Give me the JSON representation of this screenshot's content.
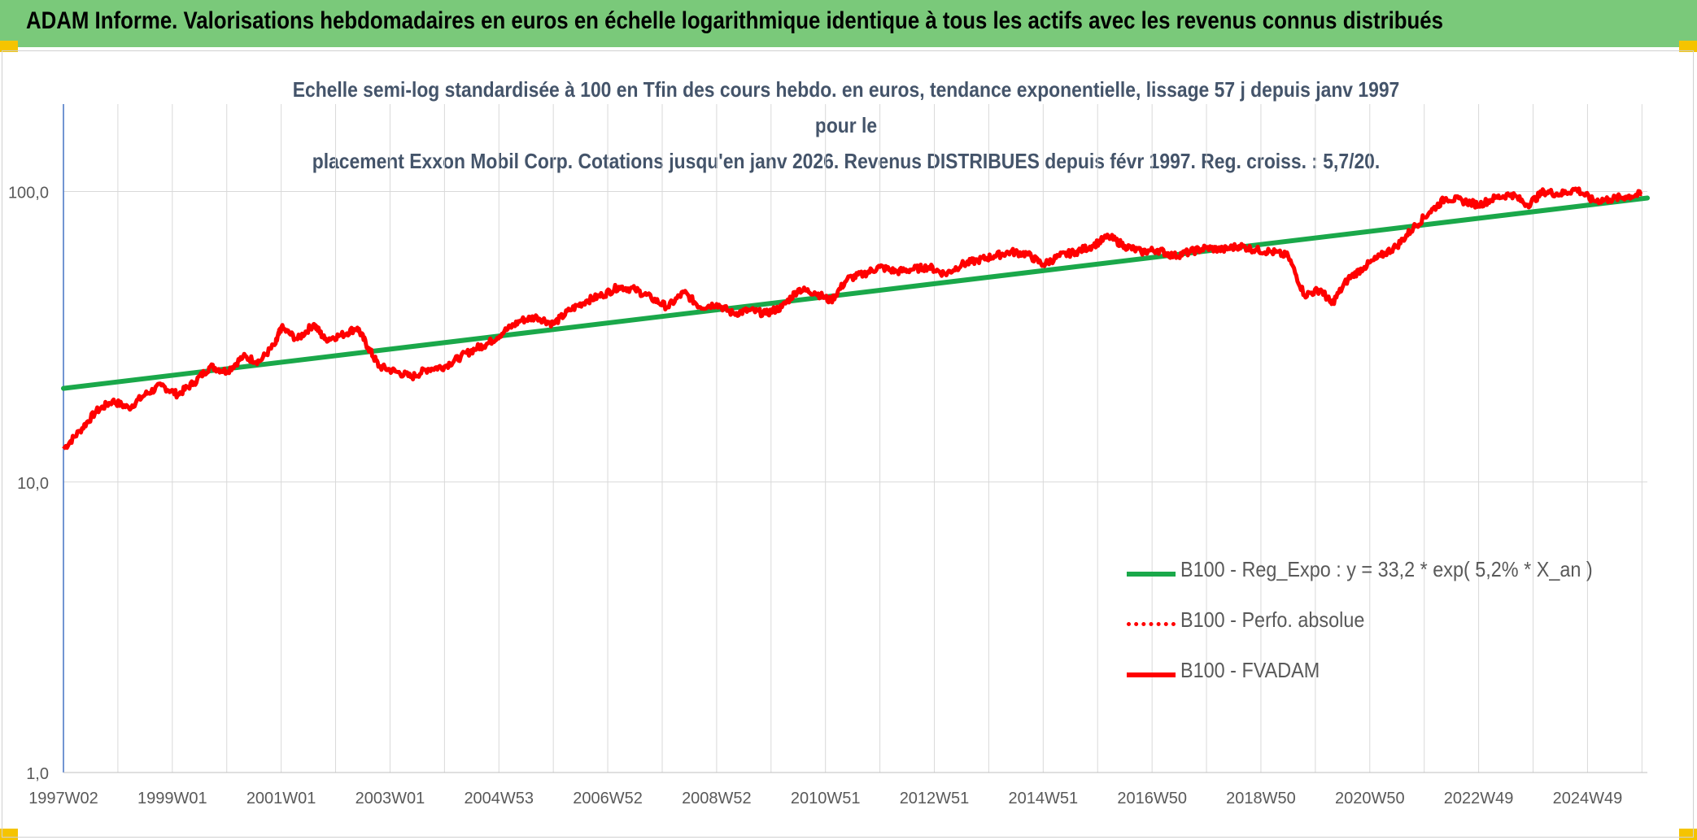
{
  "header": {
    "title": "ADAM Informe. Valorisations hebdomadaires en euros en échelle logarithmique identique à tous les actifs avec les revenus connus distribués"
  },
  "colors": {
    "header_bg": "#7ac97a",
    "trend": "#1aa84a",
    "series": "#ff0000",
    "axis_text": "#595959",
    "title_text": "#44546a",
    "grid": "#d9d9d9"
  },
  "chart_data": {
    "type": "line",
    "title_lines": [
      "Echelle semi-log standardisée à 100 en Tfin des cours hebdo. en euros, tendance exponentielle, lissage 57 j depuis janv 1997 pour le",
      "placement Exxon Mobil Corp. Cotations jusqu'en janv 2026. Revenus DISTRIBUES depuis févr 1997. Reg. croiss. : 5,7/20."
    ],
    "y_scale": "log",
    "ylim": [
      1,
      200
    ],
    "y_ticks": [
      {
        "value": 1,
        "label": "1,0"
      },
      {
        "value": 10,
        "label": "10,0"
      },
      {
        "value": 100,
        "label": "100,0"
      }
    ],
    "x_range": [
      1997.0,
      2026.1
    ],
    "x_ticks": [
      {
        "value": 1997.0,
        "label": "1997W02"
      },
      {
        "value": 1999.0,
        "label": "1999W01"
      },
      {
        "value": 2001.0,
        "label": "2001W01"
      },
      {
        "value": 2003.0,
        "label": "2003W01"
      },
      {
        "value": 2005.0,
        "label": "2004W53"
      },
      {
        "value": 2007.0,
        "label": "2006W52"
      },
      {
        "value": 2009.0,
        "label": "2008W52"
      },
      {
        "value": 2011.0,
        "label": "2010W51"
      },
      {
        "value": 2013.0,
        "label": "2012W51"
      },
      {
        "value": 2015.0,
        "label": "2014W51"
      },
      {
        "value": 2017.0,
        "label": "2016W50"
      },
      {
        "value": 2019.0,
        "label": "2018W50"
      },
      {
        "value": 2021.0,
        "label": "2020W50"
      },
      {
        "value": 2023.0,
        "label": "2022W49"
      },
      {
        "value": 2025.0,
        "label": "2024W49"
      }
    ],
    "legend_position": "bottom-right",
    "grid": true,
    "series": [
      {
        "name": "B100 - Reg_Expo : y = 33,2 * exp( 5,2% *  X_an )",
        "style": "solid",
        "color": "#1aa84a",
        "x": [
          1997.0,
          2026.1
        ],
        "y": [
          21,
          95
        ]
      },
      {
        "name": "B100 - Perfo. absolue",
        "style": "dotted",
        "color": "#ff0000",
        "x": [],
        "y": []
      },
      {
        "name": "B100 - FVADAM",
        "style": "solid",
        "color": "#ff0000",
        "x": [
          1997.0,
          1997.3,
          1997.6,
          1997.9,
          1998.2,
          1998.5,
          1998.8,
          1999.1,
          1999.4,
          1999.7,
          2000.0,
          2000.3,
          2000.6,
          2000.9,
          2001.0,
          2001.3,
          2001.6,
          2001.8,
          2002.1,
          2002.4,
          2002.6,
          2002.8,
          2003.1,
          2003.4,
          2003.7,
          2004.0,
          2004.3,
          2004.6,
          2004.8,
          2005.1,
          2005.4,
          2005.7,
          2006.0,
          2006.3,
          2006.6,
          2006.9,
          2007.2,
          2007.5,
          2007.8,
          2008.1,
          2008.4,
          2008.7,
          2009.0,
          2009.3,
          2009.6,
          2009.9,
          2010.2,
          2010.5,
          2010.8,
          2011.1,
          2011.4,
          2011.7,
          2012.0,
          2012.3,
          2012.6,
          2012.9,
          2013.2,
          2013.5,
          2013.8,
          2014.1,
          2014.4,
          2014.7,
          2015.0,
          2015.3,
          2015.6,
          2015.9,
          2016.2,
          2016.5,
          2016.8,
          2017.1,
          2017.4,
          2017.7,
          2018.0,
          2018.3,
          2018.6,
          2018.9,
          2019.2,
          2019.5,
          2019.8,
          2020.1,
          2020.3,
          2020.6,
          2020.9,
          2021.2,
          2021.5,
          2021.8,
          2022.1,
          2022.4,
          2022.7,
          2023.0,
          2023.3,
          2023.6,
          2023.9,
          2024.2,
          2024.5,
          2024.8,
          2025.1,
          2025.4,
          2025.7,
          2026.0
        ],
        "y": [
          13,
          15,
          17.5,
          19,
          18,
          20,
          21.5,
          20,
          22,
          25,
          24,
          27,
          26,
          30,
          34,
          31,
          35,
          31,
          32,
          34,
          29,
          25,
          24,
          23,
          24.5,
          25,
          27,
          29,
          30,
          33,
          36,
          37,
          35,
          39,
          42,
          44,
          47,
          46,
          43,
          40,
          45,
          40,
          41,
          38,
          39,
          38,
          40,
          46,
          45,
          42,
          50,
          52,
          55,
          53,
          54,
          55,
          52,
          56,
          58,
          60,
          62,
          61,
          56,
          60,
          62,
          65,
          70,
          65,
          62,
          63,
          60,
          62,
          64,
          63,
          65,
          63,
          62,
          60,
          44,
          46,
          41,
          50,
          55,
          60,
          65,
          75,
          85,
          95,
          93,
          90,
          95,
          98,
          90,
          100,
          98,
          102,
          93,
          94,
          96,
          98
        ]
      }
    ]
  }
}
